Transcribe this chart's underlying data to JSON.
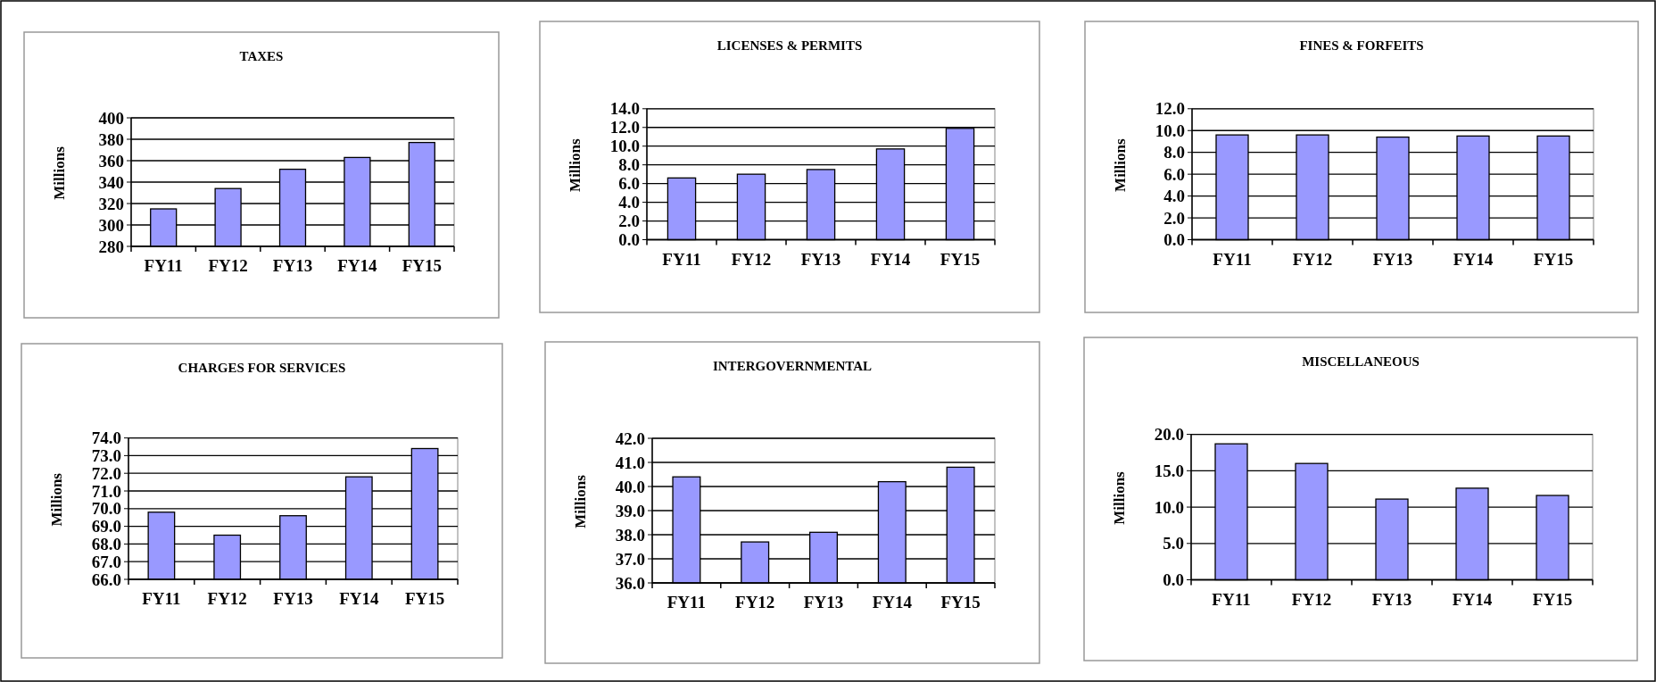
{
  "chart_data": [
    {
      "type": "bar",
      "title": "TAXES",
      "ylabel": "Millions",
      "categories": [
        "FY11",
        "FY12",
        "FY13",
        "FY14",
        "FY15"
      ],
      "values": [
        315,
        334,
        352,
        363,
        377
      ],
      "color": "#9999ff",
      "ylim": [
        280,
        400
      ],
      "yticks": [
        280,
        300,
        320,
        340,
        360,
        380,
        400
      ],
      "grid": "y"
    },
    {
      "type": "bar",
      "title": "LICENSES & PERMITS",
      "ylabel": "Millions",
      "categories": [
        "FY11",
        "FY12",
        "FY13",
        "FY14",
        "FY15"
      ],
      "values": [
        6.6,
        7.0,
        7.5,
        9.7,
        11.9
      ],
      "color": "#9999ff",
      "ylim": [
        0,
        14
      ],
      "yticks": [
        {
          "value": 0,
          "label": "0.0"
        },
        {
          "value": 2,
          "label": "2.0"
        },
        {
          "value": 4,
          "label": "4.0"
        },
        {
          "value": 6,
          "label": "6.0"
        },
        {
          "value": 8,
          "label": "8.0"
        },
        {
          "value": 10,
          "label": "10.0"
        },
        {
          "value": 12,
          "label": "12.0"
        },
        {
          "value": 14,
          "label": "14.0"
        }
      ],
      "grid": "y"
    },
    {
      "type": "bar",
      "title": "FINES & FORFEITS",
      "ylabel": "Millions",
      "categories": [
        "FY11",
        "FY12",
        "FY13",
        "FY14",
        "FY15"
      ],
      "values": [
        9.6,
        9.6,
        9.4,
        9.5,
        9.5
      ],
      "color": "#9999ff",
      "ylim": [
        0,
        12
      ],
      "yticks": [
        {
          "value": 0,
          "label": "0.0"
        },
        {
          "value": 2,
          "label": "2.0"
        },
        {
          "value": 4,
          "label": "4.0"
        },
        {
          "value": 6,
          "label": "6.0"
        },
        {
          "value": 8,
          "label": "8.0"
        },
        {
          "value": 10,
          "label": "10.0"
        },
        {
          "value": 12,
          "label": "12.0"
        }
      ],
      "grid": "y"
    },
    {
      "type": "bar",
      "title": "CHARGES FOR SERVICES",
      "ylabel": "Millions",
      "categories": [
        "FY11",
        "FY12",
        "FY13",
        "FY14",
        "FY15"
      ],
      "values": [
        69.8,
        68.5,
        69.6,
        71.8,
        73.4
      ],
      "color": "#9999ff",
      "ylim": [
        66,
        74
      ],
      "yticks": [
        {
          "value": 66,
          "label": "66.0"
        },
        {
          "value": 67,
          "label": "67.0"
        },
        {
          "value": 68,
          "label": "68.0"
        },
        {
          "value": 69,
          "label": "69.0"
        },
        {
          "value": 70,
          "label": "70.0"
        },
        {
          "value": 71,
          "label": "71.0"
        },
        {
          "value": 72,
          "label": "72.0"
        },
        {
          "value": 73,
          "label": "73.0"
        },
        {
          "value": 74,
          "label": "74.0"
        }
      ],
      "grid": "y"
    },
    {
      "type": "bar",
      "title": "INTERGOVERNMENTAL",
      "ylabel": "Millions",
      "categories": [
        "FY11",
        "FY12",
        "FY13",
        "FY14",
        "FY15"
      ],
      "values": [
        40.4,
        37.7,
        38.1,
        40.2,
        40.8
      ],
      "color": "#9999ff",
      "ylim": [
        36,
        42
      ],
      "yticks": [
        {
          "value": 36,
          "label": "36.0"
        },
        {
          "value": 37,
          "label": "37.0"
        },
        {
          "value": 38,
          "label": "38.0"
        },
        {
          "value": 39,
          "label": "39.0"
        },
        {
          "value": 40,
          "label": "40.0"
        },
        {
          "value": 41,
          "label": "41.0"
        },
        {
          "value": 42,
          "label": "42.0"
        }
      ],
      "grid": "y"
    },
    {
      "type": "bar",
      "title": "MISCELLANEOUS",
      "ylabel": "Millions",
      "categories": [
        "FY11",
        "FY12",
        "FY13",
        "FY14",
        "FY15"
      ],
      "values": [
        18.7,
        16.0,
        11.1,
        12.6,
        11.6
      ],
      "color": "#9999ff",
      "ylim": [
        0,
        20
      ],
      "yticks": [
        {
          "value": 0,
          "label": "0.0"
        },
        {
          "value": 5,
          "label": "5.0"
        },
        {
          "value": 10,
          "label": "10.0"
        },
        {
          "value": 15,
          "label": "15.0"
        },
        {
          "value": 20,
          "label": "20.0"
        }
      ],
      "grid": "y"
    }
  ]
}
